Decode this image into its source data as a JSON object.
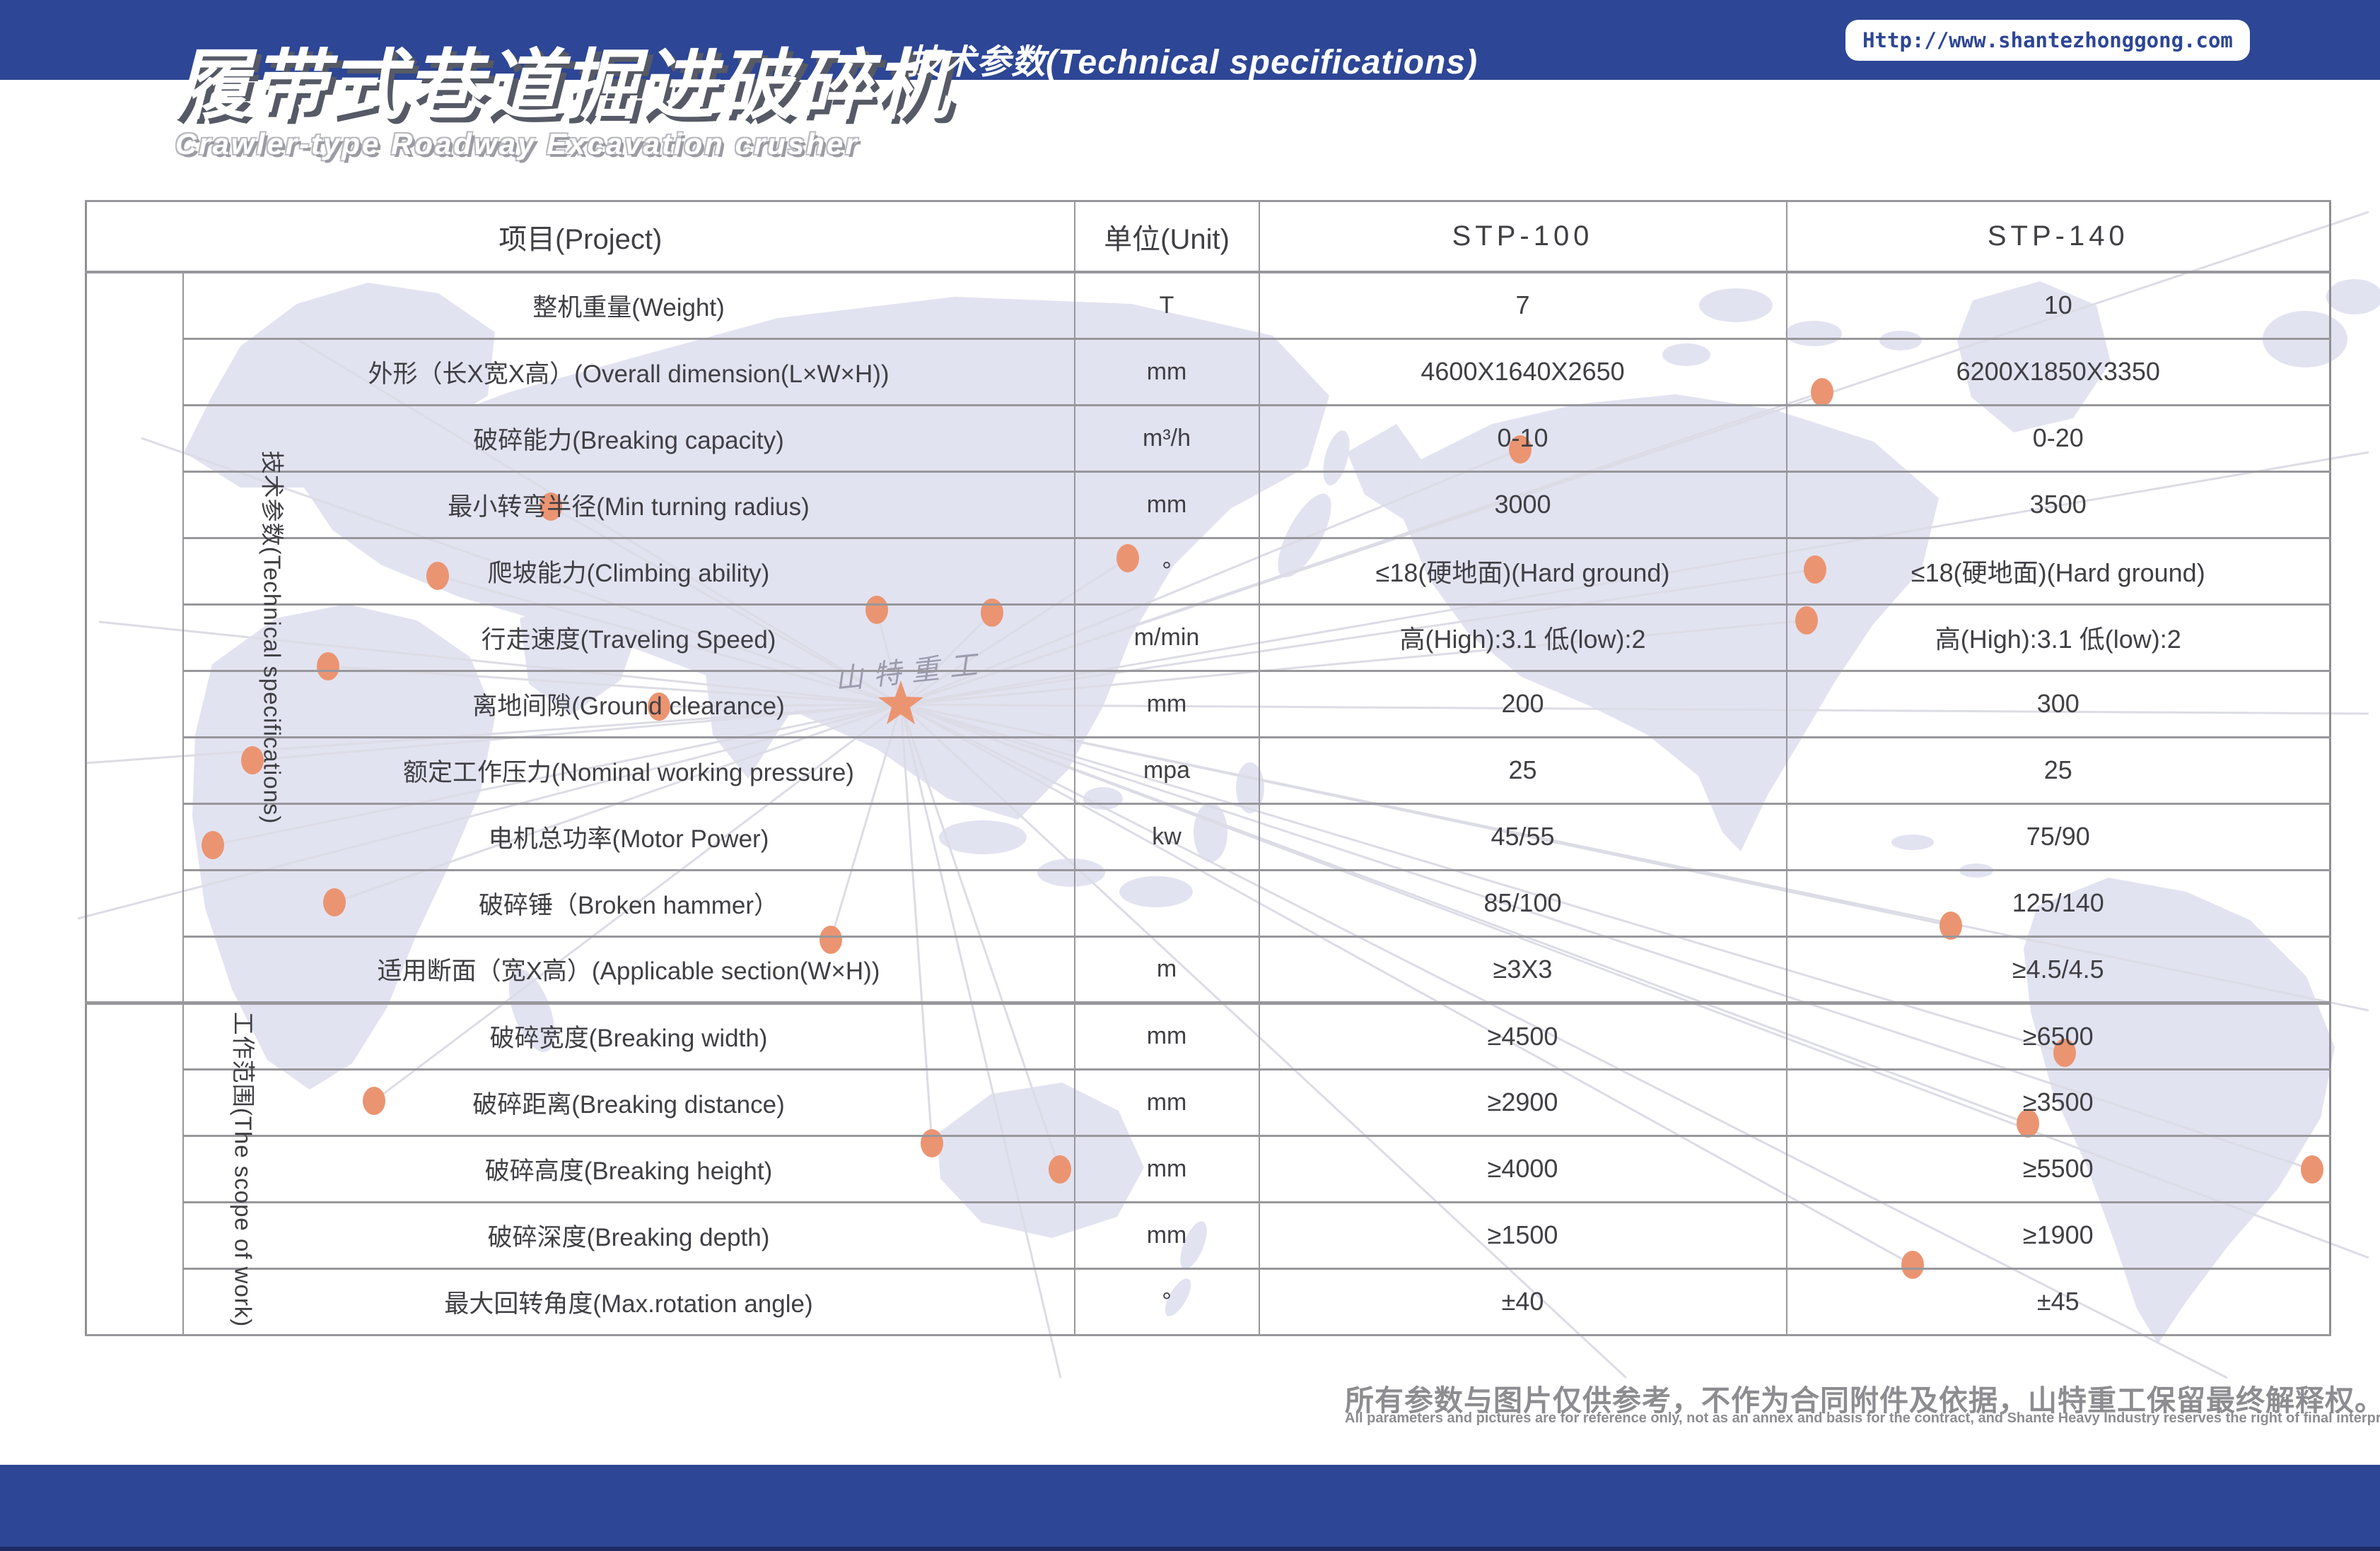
{
  "header": {
    "title_cn": "履带式巷道掘进破碎机",
    "title_en": "Crawler-type Roadway Excavation crusher",
    "section_label": "技术参数(Technical specifications)",
    "website": "Http://www.shantezhonggong.com"
  },
  "watermark": "山特重工",
  "table": {
    "columns": [
      "项目(Project)",
      "单位(Unit)",
      "STP-100",
      "STP-140"
    ],
    "sections": [
      {
        "label": "技术参数(Technical specifications)",
        "rows": [
          {
            "label": "整机重量(Weight)",
            "unit": "T",
            "stp100": "7",
            "stp140": "10"
          },
          {
            "label": "外形（长X宽X高）(Overall dimension(L×W×H))",
            "unit": "mm",
            "stp100": "4600X1640X2650",
            "stp140": "6200X1850X3350"
          },
          {
            "label": "破碎能力(Breaking capacity)",
            "unit": "m³/h",
            "stp100": "0-10",
            "stp140": "0-20"
          },
          {
            "label": "最小转弯半径(Min turning radius)",
            "unit": "mm",
            "stp100": "3000",
            "stp140": "3500"
          },
          {
            "label": "爬坡能力(Climbing ability)",
            "unit": "°",
            "stp100": "≤18(硬地面)(Hard ground)",
            "stp140": "≤18(硬地面)(Hard ground)"
          },
          {
            "label": "行走速度(Traveling Speed)",
            "unit": "m/min",
            "stp100": "高(High):3.1 低(low):2",
            "stp140": "高(High):3.1 低(low):2"
          },
          {
            "label": "离地间隙(Ground clearance)",
            "unit": "mm",
            "stp100": "200",
            "stp140": "300"
          },
          {
            "label": "额定工作压力(Nominal working pressure)",
            "unit": "mpa",
            "stp100": "25",
            "stp140": "25"
          },
          {
            "label": "电机总功率(Motor Power)",
            "unit": "kw",
            "stp100": "45/55",
            "stp140": "75/90"
          },
          {
            "label": "破碎锤（Broken hammer）",
            "unit": "",
            "stp100": "85/100",
            "stp140": "125/140"
          },
          {
            "label": "适用断面（宽X高）(Applicable section(W×H))",
            "unit": "m",
            "stp100": "≥3X3",
            "stp140": "≥4.5/4.5"
          }
        ]
      },
      {
        "label": "工作范围(The scope of work)",
        "rows": [
          {
            "label": "破碎宽度(Breaking width)",
            "unit": "mm",
            "stp100": "≥4500",
            "stp140": "≥6500"
          },
          {
            "label": "破碎距离(Breaking distance)",
            "unit": "mm",
            "stp100": "≥2900",
            "stp140": "≥3500"
          },
          {
            "label": "破碎高度(Breaking height)",
            "unit": "mm",
            "stp100": "≥4000",
            "stp140": "≥5500"
          },
          {
            "label": "破碎深度(Breaking depth)",
            "unit": "mm",
            "stp100": "≥1500",
            "stp140": "≥1900"
          },
          {
            "label": "最大回转角度(Max.rotation angle)",
            "unit": "°",
            "stp100": "±40",
            "stp140": "±45"
          }
        ]
      }
    ]
  },
  "footer": {
    "disclaimer_cn": "所有参数与图片仅供参考，不作为合同附件及依据，山特重工保留最终解释权。",
    "disclaimer_en": "All parameters and pictures are for reference only, not as an annex and basis for the contract, and Shante Heavy Industry reserves the right of final interpretation."
  },
  "colors": {
    "accent-blue": "#2d4695",
    "map-fill": "#e2e3f1",
    "line-gray": "#dcdce6",
    "dot-orange": "#eb9471",
    "table-border": "#97979c",
    "text-dark": "#3f3f44",
    "footer-gray": "#8d8d91",
    "bottom-edge": "#1d2a63"
  }
}
